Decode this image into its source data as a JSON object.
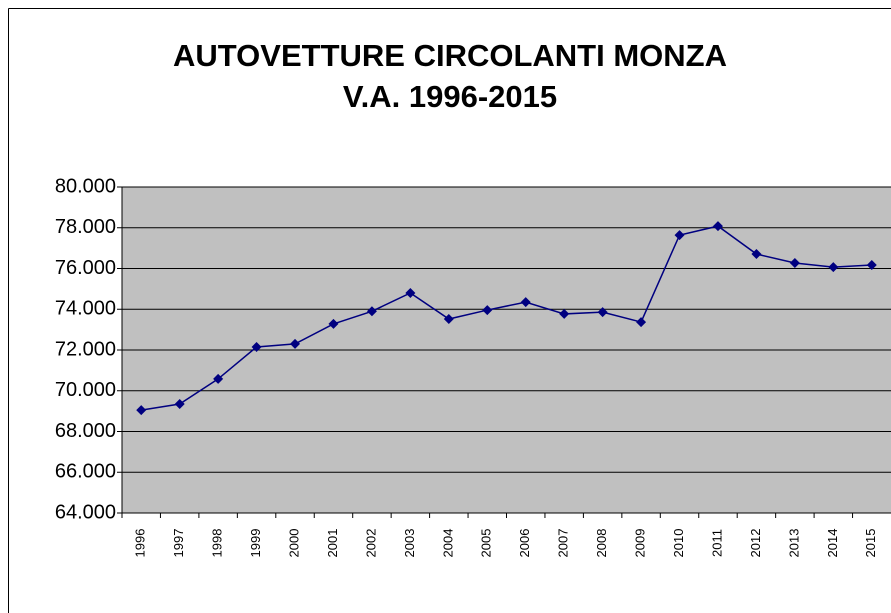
{
  "chart_data": {
    "type": "line",
    "title": "AUTOVETTURE CIRCOLANTI MONZA",
    "subtitle": "V.A. 1996-2015",
    "categories": [
      "1996",
      "1997",
      "1998",
      "1999",
      "2000",
      "2001",
      "2002",
      "2003",
      "2004",
      "2005",
      "2006",
      "2007",
      "2008",
      "2009",
      "2010",
      "2011",
      "2012",
      "2013",
      "2014",
      "2015"
    ],
    "series": [
      {
        "color": "#000080",
        "values": [
          69050,
          69350,
          70580,
          72150,
          72300,
          73280,
          73900,
          74800,
          73520,
          73960,
          74350,
          73770,
          73860,
          73370,
          77640,
          78080,
          76710,
          76270,
          76070,
          76170
        ]
      }
    ],
    "ylim": [
      64000,
      80000
    ],
    "yticks": [
      {
        "value": 64000,
        "label": "64.000"
      },
      {
        "value": 66000,
        "label": "66.000"
      },
      {
        "value": 68000,
        "label": "68.000"
      },
      {
        "value": 70000,
        "label": "70.000"
      },
      {
        "value": 72000,
        "label": "72.000"
      },
      {
        "value": 74000,
        "label": "74.000"
      },
      {
        "value": 76000,
        "label": "76.000"
      },
      {
        "value": 78000,
        "label": "78.000"
      },
      {
        "value": 80000,
        "label": "80.000"
      }
    ],
    "grid": true
  }
}
